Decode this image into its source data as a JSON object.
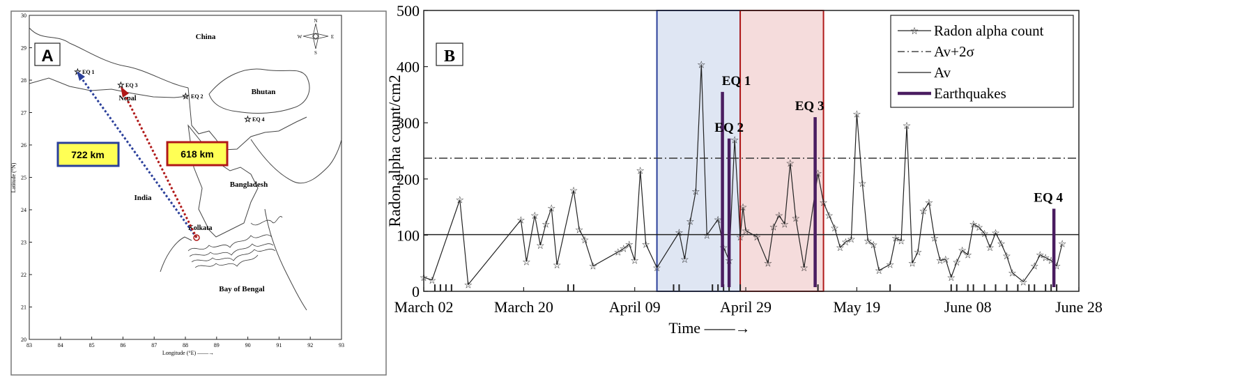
{
  "panel_a": {
    "label": "A",
    "lat_ticks": [
      "30",
      "29",
      "28",
      "27",
      "26",
      "25",
      "24",
      "23",
      "22",
      "21",
      "20"
    ],
    "lon_ticks": [
      "83",
      "84",
      "85",
      "86",
      "87",
      "88",
      "89",
      "90",
      "91",
      "92",
      "93"
    ],
    "ylabel": "Latitude (°N)",
    "xlabel": "Longitude (°E) ——→",
    "places": {
      "china": "China",
      "nepal": "Nepal",
      "bhutan": "Bhutan",
      "india": "India",
      "bangladesh": "Bangladesh",
      "bay": "Bay of Bengal",
      "kolkata": "Kolkata"
    },
    "eq_labels": [
      "EQ 1",
      "EQ 2",
      "EQ 3",
      "EQ 4"
    ],
    "compass": {
      "n": "N",
      "s": "S",
      "e": "E",
      "w": "W"
    },
    "dist_blue": "722 km",
    "dist_red": "618 km",
    "colors": {
      "blue": "#2a3f9a",
      "red": "#b01818",
      "box_fill": "#ffff55"
    }
  },
  "chart_data": {
    "type": "line",
    "panel_label": "B",
    "ylabel": "Radon alpha count/cm2",
    "xlabel": "Time ——→",
    "ylim": [
      0,
      500
    ],
    "yticks": [
      0,
      100,
      200,
      300,
      400,
      500
    ],
    "x_ticks": [
      {
        "day": 0,
        "label": "March 02"
      },
      {
        "day": 18,
        "label": "March 20"
      },
      {
        "day": 38,
        "label": "April 09"
      },
      {
        "day": 58,
        "label": "April 29"
      },
      {
        "day": 78,
        "label": "May 19"
      },
      {
        "day": 98,
        "label": "June 08"
      },
      {
        "day": 118,
        "label": "June 28"
      }
    ],
    "xlim": [
      0,
      118
    ],
    "series": [
      {
        "name": "Radon alpha count",
        "points": [
          [
            0,
            25
          ],
          [
            1.5,
            20
          ],
          [
            6.5,
            163
          ],
          [
            8,
            12
          ],
          [
            17.5,
            127
          ],
          [
            18.5,
            53
          ],
          [
            20,
            135
          ],
          [
            21,
            82
          ],
          [
            22,
            120
          ],
          [
            23,
            148
          ],
          [
            24,
            47
          ],
          [
            27,
            180
          ],
          [
            28,
            110
          ],
          [
            29,
            92
          ],
          [
            30.5,
            45
          ],
          [
            35,
            70
          ],
          [
            36,
            76
          ],
          [
            37,
            84
          ],
          [
            38,
            55
          ],
          [
            39,
            215
          ],
          [
            40,
            84
          ],
          [
            42,
            42
          ],
          [
            46,
            105
          ],
          [
            47,
            57
          ],
          [
            48,
            125
          ],
          [
            49,
            178
          ],
          [
            50,
            404
          ],
          [
            51,
            100
          ],
          [
            53,
            128
          ],
          [
            54,
            78
          ],
          [
            55,
            55
          ],
          [
            56,
            270
          ],
          [
            57,
            97
          ],
          [
            57.5,
            150
          ],
          [
            58,
            108
          ],
          [
            60,
            97
          ],
          [
            62,
            50
          ],
          [
            63,
            115
          ],
          [
            64,
            135
          ],
          [
            65,
            120
          ],
          [
            66,
            228
          ],
          [
            67,
            130
          ],
          [
            68.5,
            42
          ],
          [
            71,
            210
          ],
          [
            72,
            158
          ],
          [
            73,
            135
          ],
          [
            74,
            113
          ],
          [
            75,
            78
          ],
          [
            76,
            88
          ],
          [
            77,
            93
          ],
          [
            78,
            316
          ],
          [
            79,
            192
          ],
          [
            80,
            90
          ],
          [
            81,
            83
          ],
          [
            82,
            37
          ],
          [
            84,
            48
          ],
          [
            85,
            95
          ],
          [
            86,
            90
          ],
          [
            87,
            295
          ],
          [
            88,
            50
          ],
          [
            89,
            70
          ],
          [
            90,
            143
          ],
          [
            91,
            158
          ],
          [
            92,
            95
          ],
          [
            93,
            55
          ],
          [
            94,
            57
          ],
          [
            95,
            25
          ],
          [
            96,
            52
          ],
          [
            97,
            73
          ],
          [
            98,
            65
          ],
          [
            99,
            120
          ],
          [
            100,
            114
          ],
          [
            101,
            103
          ],
          [
            102,
            78
          ],
          [
            103,
            104
          ],
          [
            104,
            85
          ],
          [
            105,
            63
          ],
          [
            106,
            33
          ],
          [
            108,
            17
          ],
          [
            110,
            45
          ],
          [
            111,
            65
          ],
          [
            112,
            60
          ],
          [
            113,
            55
          ],
          [
            114,
            45
          ],
          [
            115,
            85
          ]
        ]
      },
      {
        "name": "Av+2σ",
        "y": 237
      },
      {
        "name": "Av",
        "y": 101
      }
    ],
    "earthquakes": [
      {
        "label": "EQ 1",
        "day": 53.8,
        "value": 355
      },
      {
        "label": "EQ 2",
        "day": 55,
        "value": 272
      },
      {
        "label": "EQ 3",
        "day": 70.5,
        "value": 310
      },
      {
        "label": "EQ 4",
        "day": 113.5,
        "value": 147
      }
    ],
    "legend_entries": [
      "Radon alpha count",
      "Av+2σ",
      "Av",
      "Earthquakes"
    ],
    "legend_position": "top-right",
    "shaded_regions": [
      {
        "from": 42,
        "to": 57,
        "color": "#dfe6f3",
        "edge": "#2a3f9a"
      },
      {
        "from": 57,
        "to": 72,
        "color": "#f5dcdc",
        "edge": "#b01818"
      }
    ],
    "bottom_ticks": [
      2,
      3,
      4,
      5,
      26,
      27,
      45,
      46,
      52,
      53,
      54,
      55,
      57,
      71,
      84,
      95,
      96,
      98,
      99,
      101,
      103,
      105,
      107,
      109,
      110,
      112,
      113,
      114
    ],
    "colors": {
      "line": "#222222",
      "eq": "#4a1d60"
    }
  }
}
